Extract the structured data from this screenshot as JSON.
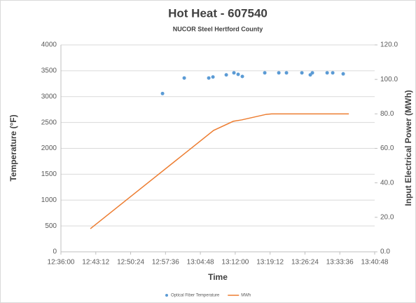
{
  "chart_data": {
    "type": "scatter",
    "title": "Hot Heat - 607540",
    "subtitle": "NUCOR Steel Hertford County",
    "x_label": "Time",
    "y_label": "Temperature (°F)",
    "y2_label": "Input Electrical Power (MWh)",
    "xlim": [
      45360,
      49248
    ],
    "xticks": [
      {
        "value": 45360,
        "label": "12:36:00"
      },
      {
        "value": 45792,
        "label": "12:43:12"
      },
      {
        "value": 46224,
        "label": "12:50:24"
      },
      {
        "value": 46656,
        "label": "12:57:36"
      },
      {
        "value": 47088,
        "label": "13:04:48"
      },
      {
        "value": 47520,
        "label": "13:12:00"
      },
      {
        "value": 47952,
        "label": "13:19:12"
      },
      {
        "value": 48384,
        "label": "13:26:24"
      },
      {
        "value": 48816,
        "label": "13:33:36"
      },
      {
        "value": 49248,
        "label": "13:40:48"
      }
    ],
    "ylim": [
      0,
      4000
    ],
    "yticks": [
      0,
      500,
      1000,
      1500,
      2000,
      2500,
      3000,
      3500,
      4000
    ],
    "y2lim": [
      0,
      120
    ],
    "y2ticks": [
      {
        "value": 0,
        "label": "0.0"
      },
      {
        "value": 20,
        "label": "20.0"
      },
      {
        "value": 40,
        "label": "40.0"
      },
      {
        "value": 60,
        "label": "60.0"
      },
      {
        "value": 80,
        "label": "80.0"
      },
      {
        "value": 100,
        "label": "100.0"
      },
      {
        "value": 120,
        "label": "120.0"
      }
    ],
    "grid": true,
    "legend": "bottom",
    "series": [
      {
        "name": "Optical Fiber Temperature",
        "type": "scatter",
        "color": "#5b9bd5",
        "x": [
          46619,
          46888,
          47192,
          47244,
          47409,
          47504,
          47556,
          47608,
          47886,
          48060,
          48155,
          48346,
          48450,
          48476,
          48659,
          48728,
          48858
        ],
        "values": [
          3060,
          3360,
          3360,
          3380,
          3420,
          3460,
          3430,
          3390,
          3460,
          3460,
          3460,
          3460,
          3420,
          3460,
          3460,
          3460,
          3440
        ]
      },
      {
        "name": "MWh",
        "type": "line",
        "axis": "y2",
        "color": "#ed7d31",
        "x": [
          45725,
          47252,
          47496,
          47600,
          47903,
          47972,
          48928
        ],
        "values": [
          13.4,
          70.4,
          75.7,
          76.5,
          79.7,
          80,
          80
        ]
      }
    ]
  }
}
